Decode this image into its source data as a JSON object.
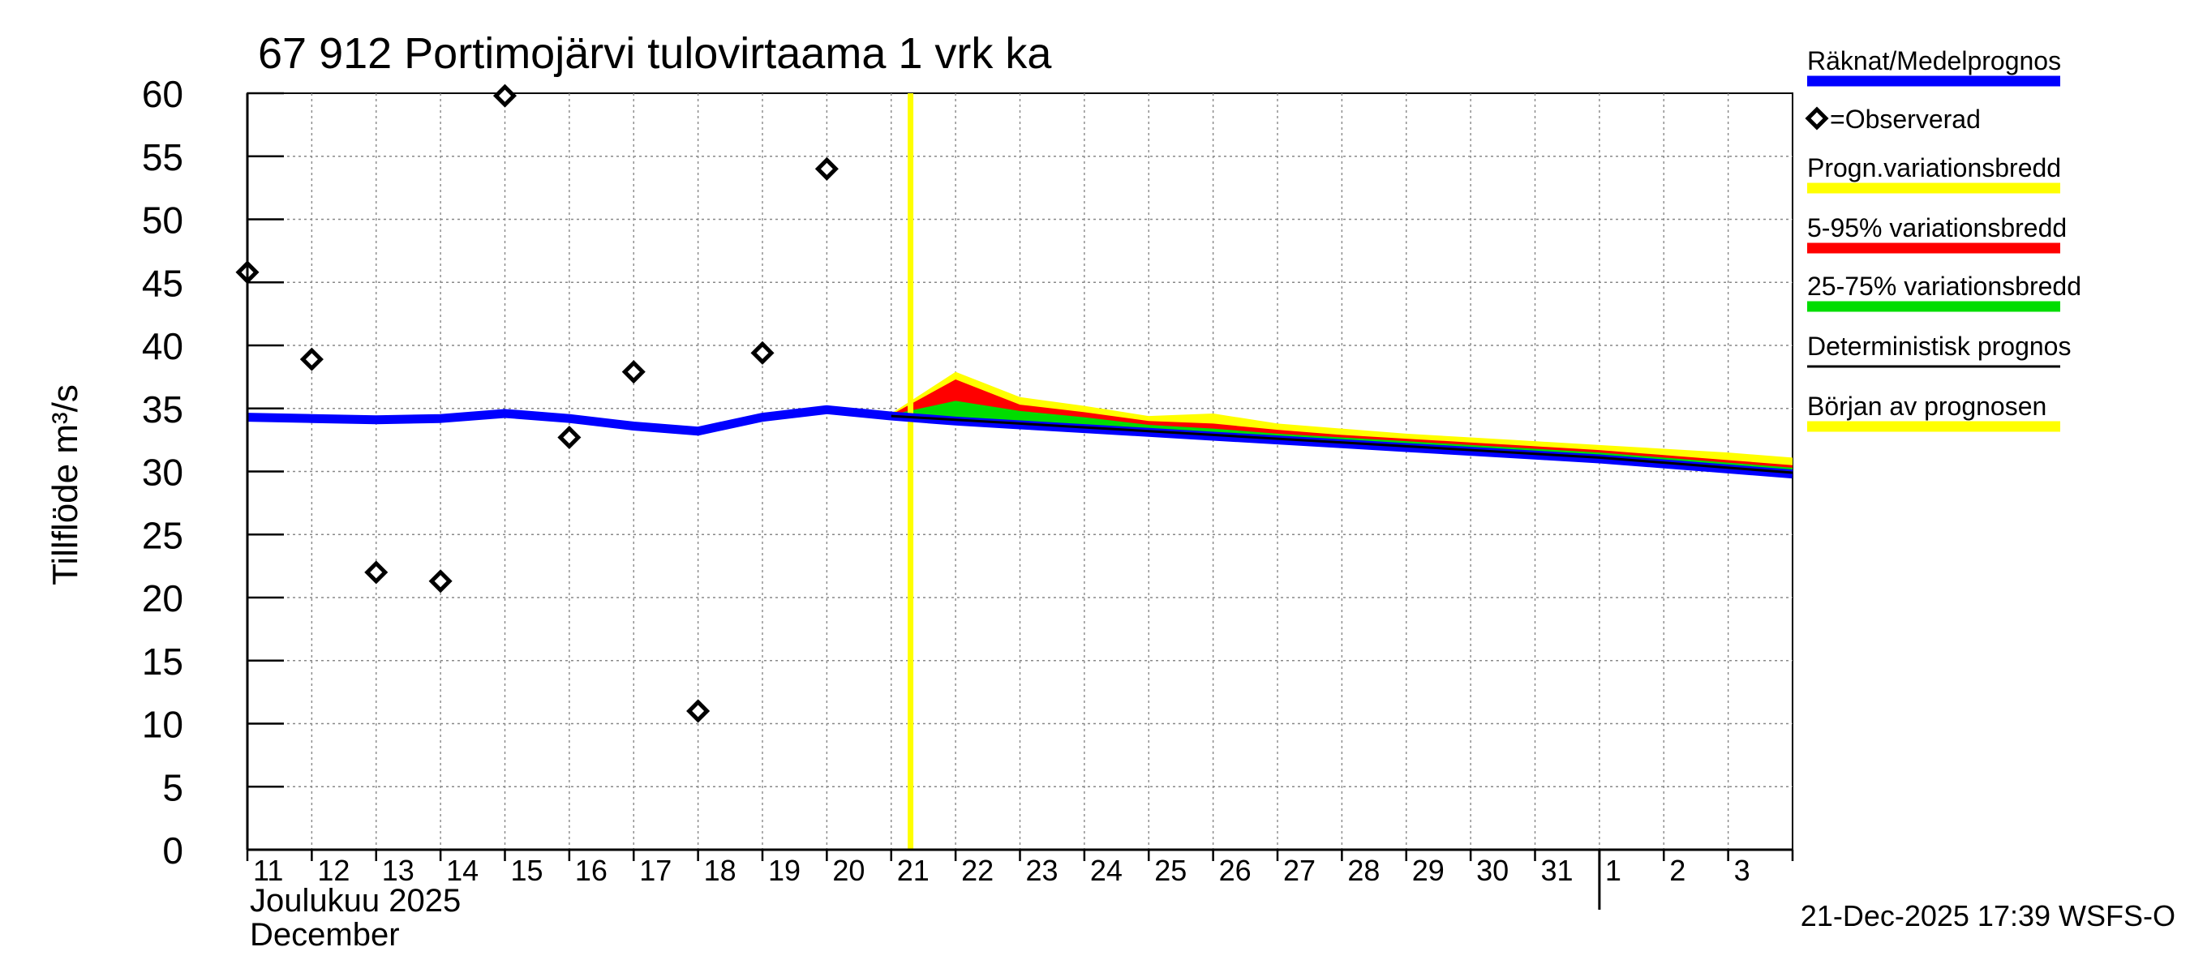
{
  "chart_data": {
    "type": "line",
    "title": "67 912 Portimojärvi tulovirtaama 1 vrk ka",
    "ylabel": "Tillflöde m³/s",
    "ylim": [
      0,
      60
    ],
    "yticks": [
      0,
      5,
      10,
      15,
      20,
      25,
      30,
      35,
      40,
      45,
      50,
      55,
      60
    ],
    "grid": true,
    "legend_position": "right",
    "x_axis": {
      "day_labels": [
        "11",
        "12",
        "13",
        "14",
        "15",
        "16",
        "17",
        "18",
        "19",
        "20",
        "21",
        "22",
        "23",
        "24",
        "25",
        "26",
        "27",
        "28",
        "29",
        "30",
        "31",
        "1",
        "2",
        "3"
      ],
      "month_label_fi": "Joulukuu  2025",
      "month_label_en": "December",
      "month_break_day": 22
    },
    "forecast_start_day": 10.3,
    "timestamp": "21-Dec-2025 17:39 WSFS-O",
    "legend": [
      {
        "label": "Räknat/Medelprognos",
        "color": "#0000ff",
        "kind": "line-thick"
      },
      {
        "label": "=Observerad",
        "color": "#000000",
        "kind": "marker"
      },
      {
        "label": "Progn.variationsbredd",
        "color": "#ffff00",
        "kind": "line-thick"
      },
      {
        "label": "5-95% variationsbredd",
        "color": "#ff0000",
        "kind": "line-thick"
      },
      {
        "label": "25-75% variationsbredd",
        "color": "#00dd00",
        "kind": "line-thick"
      },
      {
        "label": "Deterministisk prognos",
        "color": "#000000",
        "kind": "line-thin"
      },
      {
        "label": "Början av prognosen",
        "color": "#ffff00",
        "kind": "line-thick"
      }
    ],
    "observed": {
      "name": "Observerad",
      "x": [
        0,
        1,
        2,
        3,
        4,
        5,
        6,
        7,
        8,
        9
      ],
      "y": [
        45.8,
        38.9,
        22.0,
        21.3,
        59.8,
        32.7,
        37.9,
        11.0,
        39.4,
        54.0
      ]
    },
    "mean": {
      "name": "Räknat/Medelprognos",
      "x": [
        0,
        1,
        2,
        3,
        4,
        5,
        6,
        7,
        8,
        9,
        10,
        11,
        12,
        13,
        14,
        15,
        16,
        17,
        18,
        19,
        20,
        21,
        22,
        23,
        24
      ],
      "y": [
        34.3,
        34.2,
        34.1,
        34.2,
        34.6,
        34.2,
        33.6,
        33.2,
        34.3,
        34.9,
        34.4,
        34.0,
        33.7,
        33.4,
        33.1,
        32.8,
        32.5,
        32.2,
        31.9,
        31.6,
        31.3,
        31.0,
        30.6,
        30.2,
        29.8
      ]
    },
    "deterministic": {
      "name": "Deterministisk prognos",
      "x": [
        10,
        11,
        12,
        13,
        14,
        15,
        16,
        17,
        18,
        19,
        20,
        21,
        22,
        23,
        24
      ],
      "y": [
        34.4,
        34.1,
        33.8,
        33.5,
        33.2,
        32.9,
        32.6,
        32.3,
        32.0,
        31.7,
        31.4,
        31.1,
        30.7,
        30.3,
        29.9
      ]
    },
    "band_outer": {
      "x": [
        10,
        11,
        12,
        13,
        14,
        15,
        16,
        17,
        18,
        19,
        20,
        21,
        22,
        23,
        24
      ],
      "upper": [
        34.6,
        37.9,
        35.9,
        35.2,
        34.4,
        34.6,
        33.8,
        33.4,
        33.0,
        32.7,
        32.4,
        32.1,
        31.8,
        31.5,
        31.1
      ],
      "lower": [
        34.4,
        34.1,
        33.8,
        33.5,
        33.2,
        32.9,
        32.6,
        32.3,
        32.0,
        31.7,
        31.4,
        31.1,
        30.7,
        30.3,
        29.9
      ]
    },
    "band_5_95": {
      "x": [
        10,
        11,
        12,
        13,
        14,
        15,
        16,
        17,
        18,
        19,
        20,
        21,
        22,
        23,
        24
      ],
      "upper": [
        34.5,
        37.3,
        35.3,
        34.7,
        34.0,
        33.8,
        33.3,
        32.9,
        32.6,
        32.3,
        32.0,
        31.7,
        31.3,
        30.9,
        30.5
      ],
      "lower": [
        34.4,
        34.1,
        33.8,
        33.5,
        33.2,
        32.9,
        32.6,
        32.3,
        32.0,
        31.7,
        31.4,
        31.1,
        30.7,
        30.3,
        29.9
      ]
    },
    "band_25_75": {
      "x": [
        10,
        11,
        12,
        13,
        14,
        15,
        16,
        17,
        18,
        19,
        20,
        21,
        22,
        23,
        24
      ],
      "upper": [
        34.5,
        35.6,
        34.8,
        34.3,
        33.7,
        33.4,
        33.0,
        32.7,
        32.4,
        32.1,
        31.8,
        31.5,
        31.1,
        30.7,
        30.3
      ],
      "lower": [
        34.4,
        34.1,
        33.8,
        33.5,
        33.2,
        32.9,
        32.6,
        32.3,
        32.0,
        31.7,
        31.4,
        31.1,
        30.7,
        30.3,
        29.9
      ]
    }
  }
}
